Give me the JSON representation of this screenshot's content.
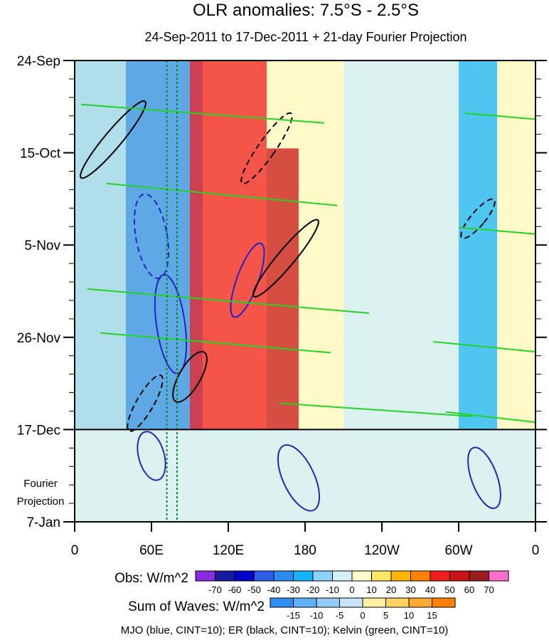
{
  "chart_data": {
    "type": "heatmap",
    "title": "OLR anomalies: 7.5°S - 2.5°S",
    "subtitle": "24-Sep-2011 to 17-Dec-2011 + 21-day Fourier Projection",
    "x_ticks": [
      "0",
      "60E",
      "120E",
      "180",
      "120W",
      "60W",
      "0"
    ],
    "x_range_deg": [
      0,
      360
    ],
    "y_ticks": [
      "24-Sep",
      "15-Oct",
      "5-Nov",
      "26-Nov",
      "17-Dec",
      "7-Jan"
    ],
    "y_range_days": [
      0,
      105
    ],
    "projection_start_label": "17-Dec",
    "projection_label": [
      "Fourier",
      "Projection"
    ],
    "guide_lines_lon": [
      72,
      80
    ],
    "obs_legend": {
      "label": "Obs: W/m^2",
      "levels": [
        "-70",
        "-60",
        "-50",
        "-40",
        "-30",
        "-20",
        "-10",
        "0",
        "10",
        "20",
        "30",
        "40",
        "50",
        "60",
        "70"
      ],
      "colors": [
        "#8a2be2",
        "#1a1aa0",
        "#0000cd",
        "#2f5ee8",
        "#2a8cf0",
        "#14b4ff",
        "#8fd2f8",
        "#d2f0fa",
        "#fffac8",
        "#ffe664",
        "#ffb400",
        "#ff8200",
        "#f01e1e",
        "#c81414",
        "#9b1e1e",
        "#ff6ec8"
      ]
    },
    "waves_legend": {
      "label": "Sum of Waves: W/m^2",
      "levels": [
        "-15",
        "-10",
        "-5",
        "0",
        "5",
        "10",
        "15"
      ],
      "colors": [
        "#2f8ef0",
        "#5fb0f8",
        "#93cdf6",
        "#c8e6fa",
        "#fff0a0",
        "#ffd264",
        "#ffaa32",
        "#ff8200"
      ]
    },
    "footer": "MJO (blue, CINT=10); ER (black, CINT=10); Kelvin (green, CINT=10)",
    "series": [
      {
        "name": "MJO",
        "color": "#2424c8"
      },
      {
        "name": "ER",
        "color": "#000000"
      },
      {
        "name": "Kelvin",
        "color": "#22d522"
      }
    ],
    "anomaly_bands": [
      {
        "lon_start": 40,
        "lon_end": 100,
        "day_start": 0,
        "day_end": 84,
        "value": -40
      },
      {
        "lon_start": 90,
        "lon_end": 150,
        "day_start": 0,
        "day_end": 84,
        "value": 35
      },
      {
        "lon_start": 150,
        "lon_end": 175,
        "day_start": 20,
        "day_end": 84,
        "value": 45
      },
      {
        "lon_start": 300,
        "lon_end": 330,
        "day_start": 0,
        "day_end": 84,
        "value": -30
      }
    ]
  }
}
